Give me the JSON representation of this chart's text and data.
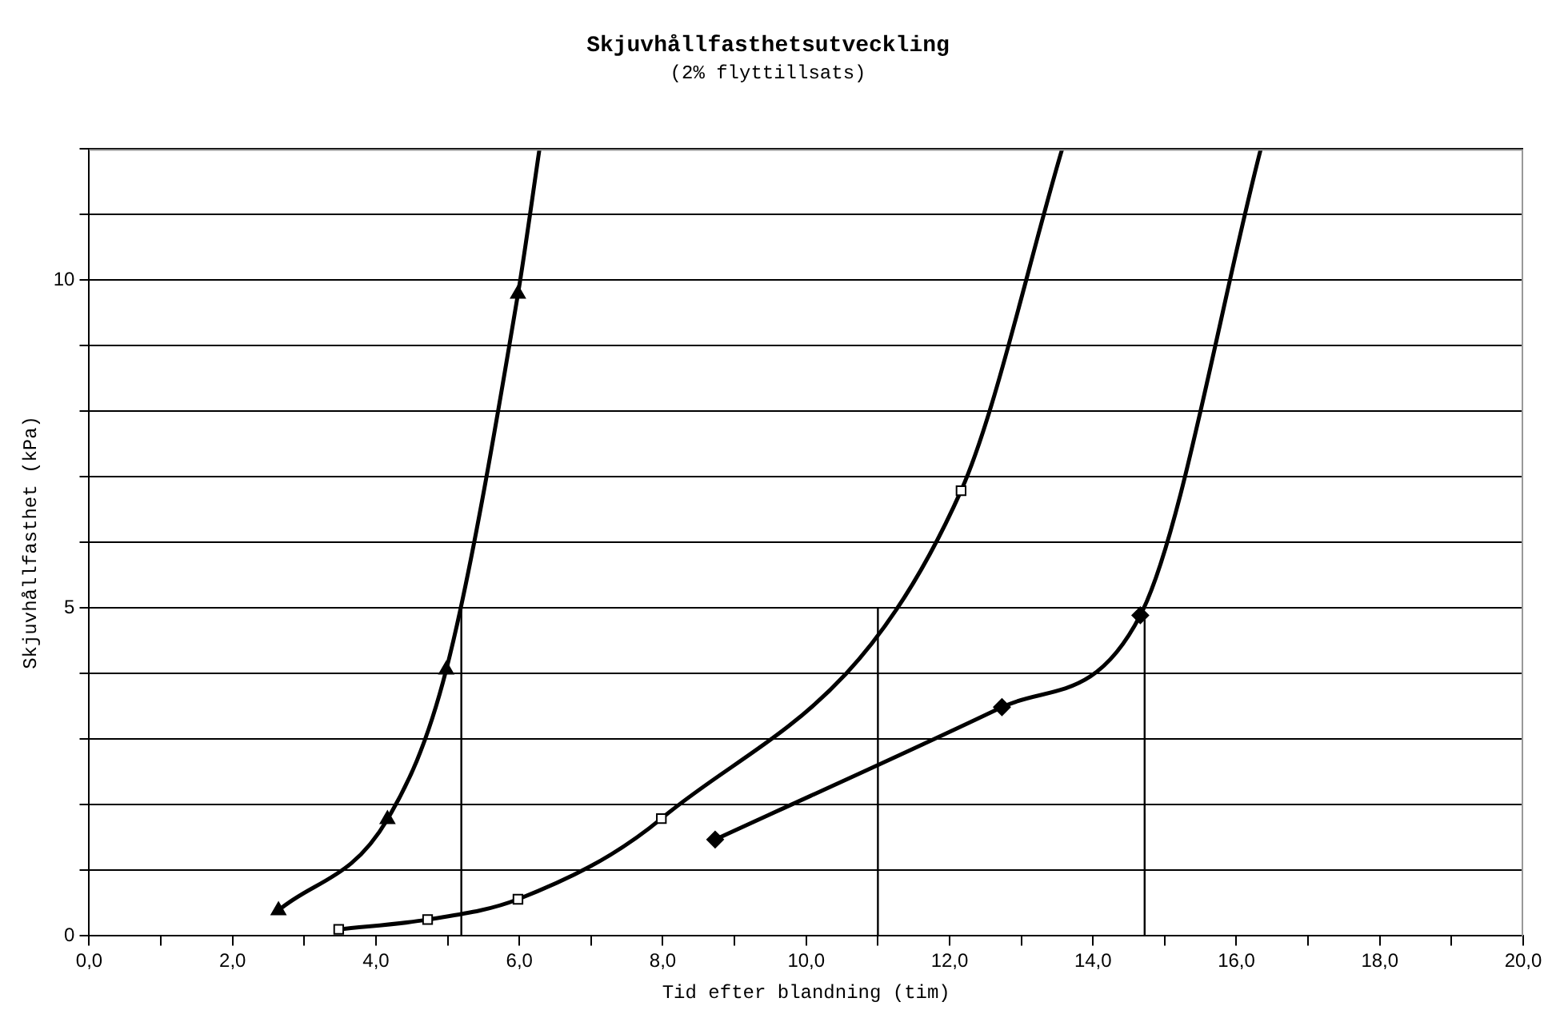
{
  "chart_data": {
    "type": "line",
    "title": "Skjuvhållfasthetsutveckling",
    "subtitle": "(2% flyttillsats)",
    "xlabel": "Tid efter blandning (tim)",
    "ylabel": "Skjuvhållfasthet (kPa)",
    "xlim": [
      0,
      20
    ],
    "ylim": [
      0,
      12
    ],
    "xticks": [
      {
        "value": 0,
        "label": "0,0"
      },
      {
        "value": 1,
        "label": null
      },
      {
        "value": 2,
        "label": "2,0"
      },
      {
        "value": 3,
        "label": null
      },
      {
        "value": 4,
        "label": "4,0"
      },
      {
        "value": 5,
        "label": null
      },
      {
        "value": 6,
        "label": "6,0"
      },
      {
        "value": 7,
        "label": null
      },
      {
        "value": 8,
        "label": "8,0"
      },
      {
        "value": 9,
        "label": null
      },
      {
        "value": 10,
        "label": "10,0"
      },
      {
        "value": 11,
        "label": null
      },
      {
        "value": 12,
        "label": "12,0"
      },
      {
        "value": 13,
        "label": null
      },
      {
        "value": 14,
        "label": "14,0"
      },
      {
        "value": 15,
        "label": null
      },
      {
        "value": 16,
        "label": "16,0"
      },
      {
        "value": 17,
        "label": null
      },
      {
        "value": 18,
        "label": "18,0"
      },
      {
        "value": 19,
        "label": null
      },
      {
        "value": 20,
        "label": "20,0"
      }
    ],
    "yticks": [
      0,
      {
        "value": 1,
        "label": null
      },
      {
        "value": 2,
        "label": null
      },
      {
        "value": 3,
        "label": null
      },
      {
        "value": 4,
        "label": null
      },
      5,
      {
        "value": 6,
        "label": null
      },
      {
        "value": 7,
        "label": null
      },
      {
        "value": 8,
        "label": null
      },
      {
        "value": 9,
        "label": null
      },
      10,
      {
        "value": 11,
        "label": null
      },
      {
        "value": 12,
        "label": null
      }
    ],
    "grid": "y",
    "legend": false,
    "series": [
      {
        "type": "line",
        "marker": "none",
        "color": "#000000",
        "x": [
          2.64,
          4.16,
          4.98,
          5.98,
          6.28
        ],
        "values": [
          0.39,
          1.78,
          4.06,
          9.79,
          12
        ]
      },
      {
        "type": "scatter",
        "marker": "triangle",
        "color": "#000000",
        "x": [
          2.64,
          4.16,
          4.98,
          5.98
        ],
        "values": [
          0.39,
          1.78,
          4.06,
          9.79
        ]
      },
      {
        "type": "line",
        "marker": "none",
        "color": "#000000",
        "x": [
          3.48,
          4.72,
          5.98,
          7.98,
          12.16,
          13.57
        ],
        "values": [
          0.1,
          0.25,
          0.56,
          1.79,
          6.79,
          12
        ]
      },
      {
        "type": "scatter",
        "marker": "square",
        "color": "#000000",
        "x": [
          3.48,
          4.72,
          5.98,
          7.98,
          12.16
        ],
        "values": [
          0.1,
          0.25,
          0.56,
          1.79,
          6.79
        ]
      },
      {
        "type": "line",
        "marker": "none",
        "color": "#000000",
        "x": [
          8.73,
          12.73,
          14.66,
          16.34
        ],
        "values": [
          1.47,
          3.49,
          4.89,
          12
        ]
      },
      {
        "type": "scatter",
        "marker": "diamond",
        "color": "#000000",
        "x": [
          8.73,
          12.73,
          14.66
        ],
        "values": [
          1.47,
          3.49,
          4.89
        ]
      },
      {
        "type": "line",
        "marker": "none",
        "color": "#000000",
        "x": [
          5.19,
          5.19,
          null,
          11.0,
          11.0,
          null,
          14.72,
          14.72
        ],
        "values": [
          0,
          5,
          null,
          0,
          5,
          null,
          0,
          4.89
        ]
      }
    ]
  }
}
